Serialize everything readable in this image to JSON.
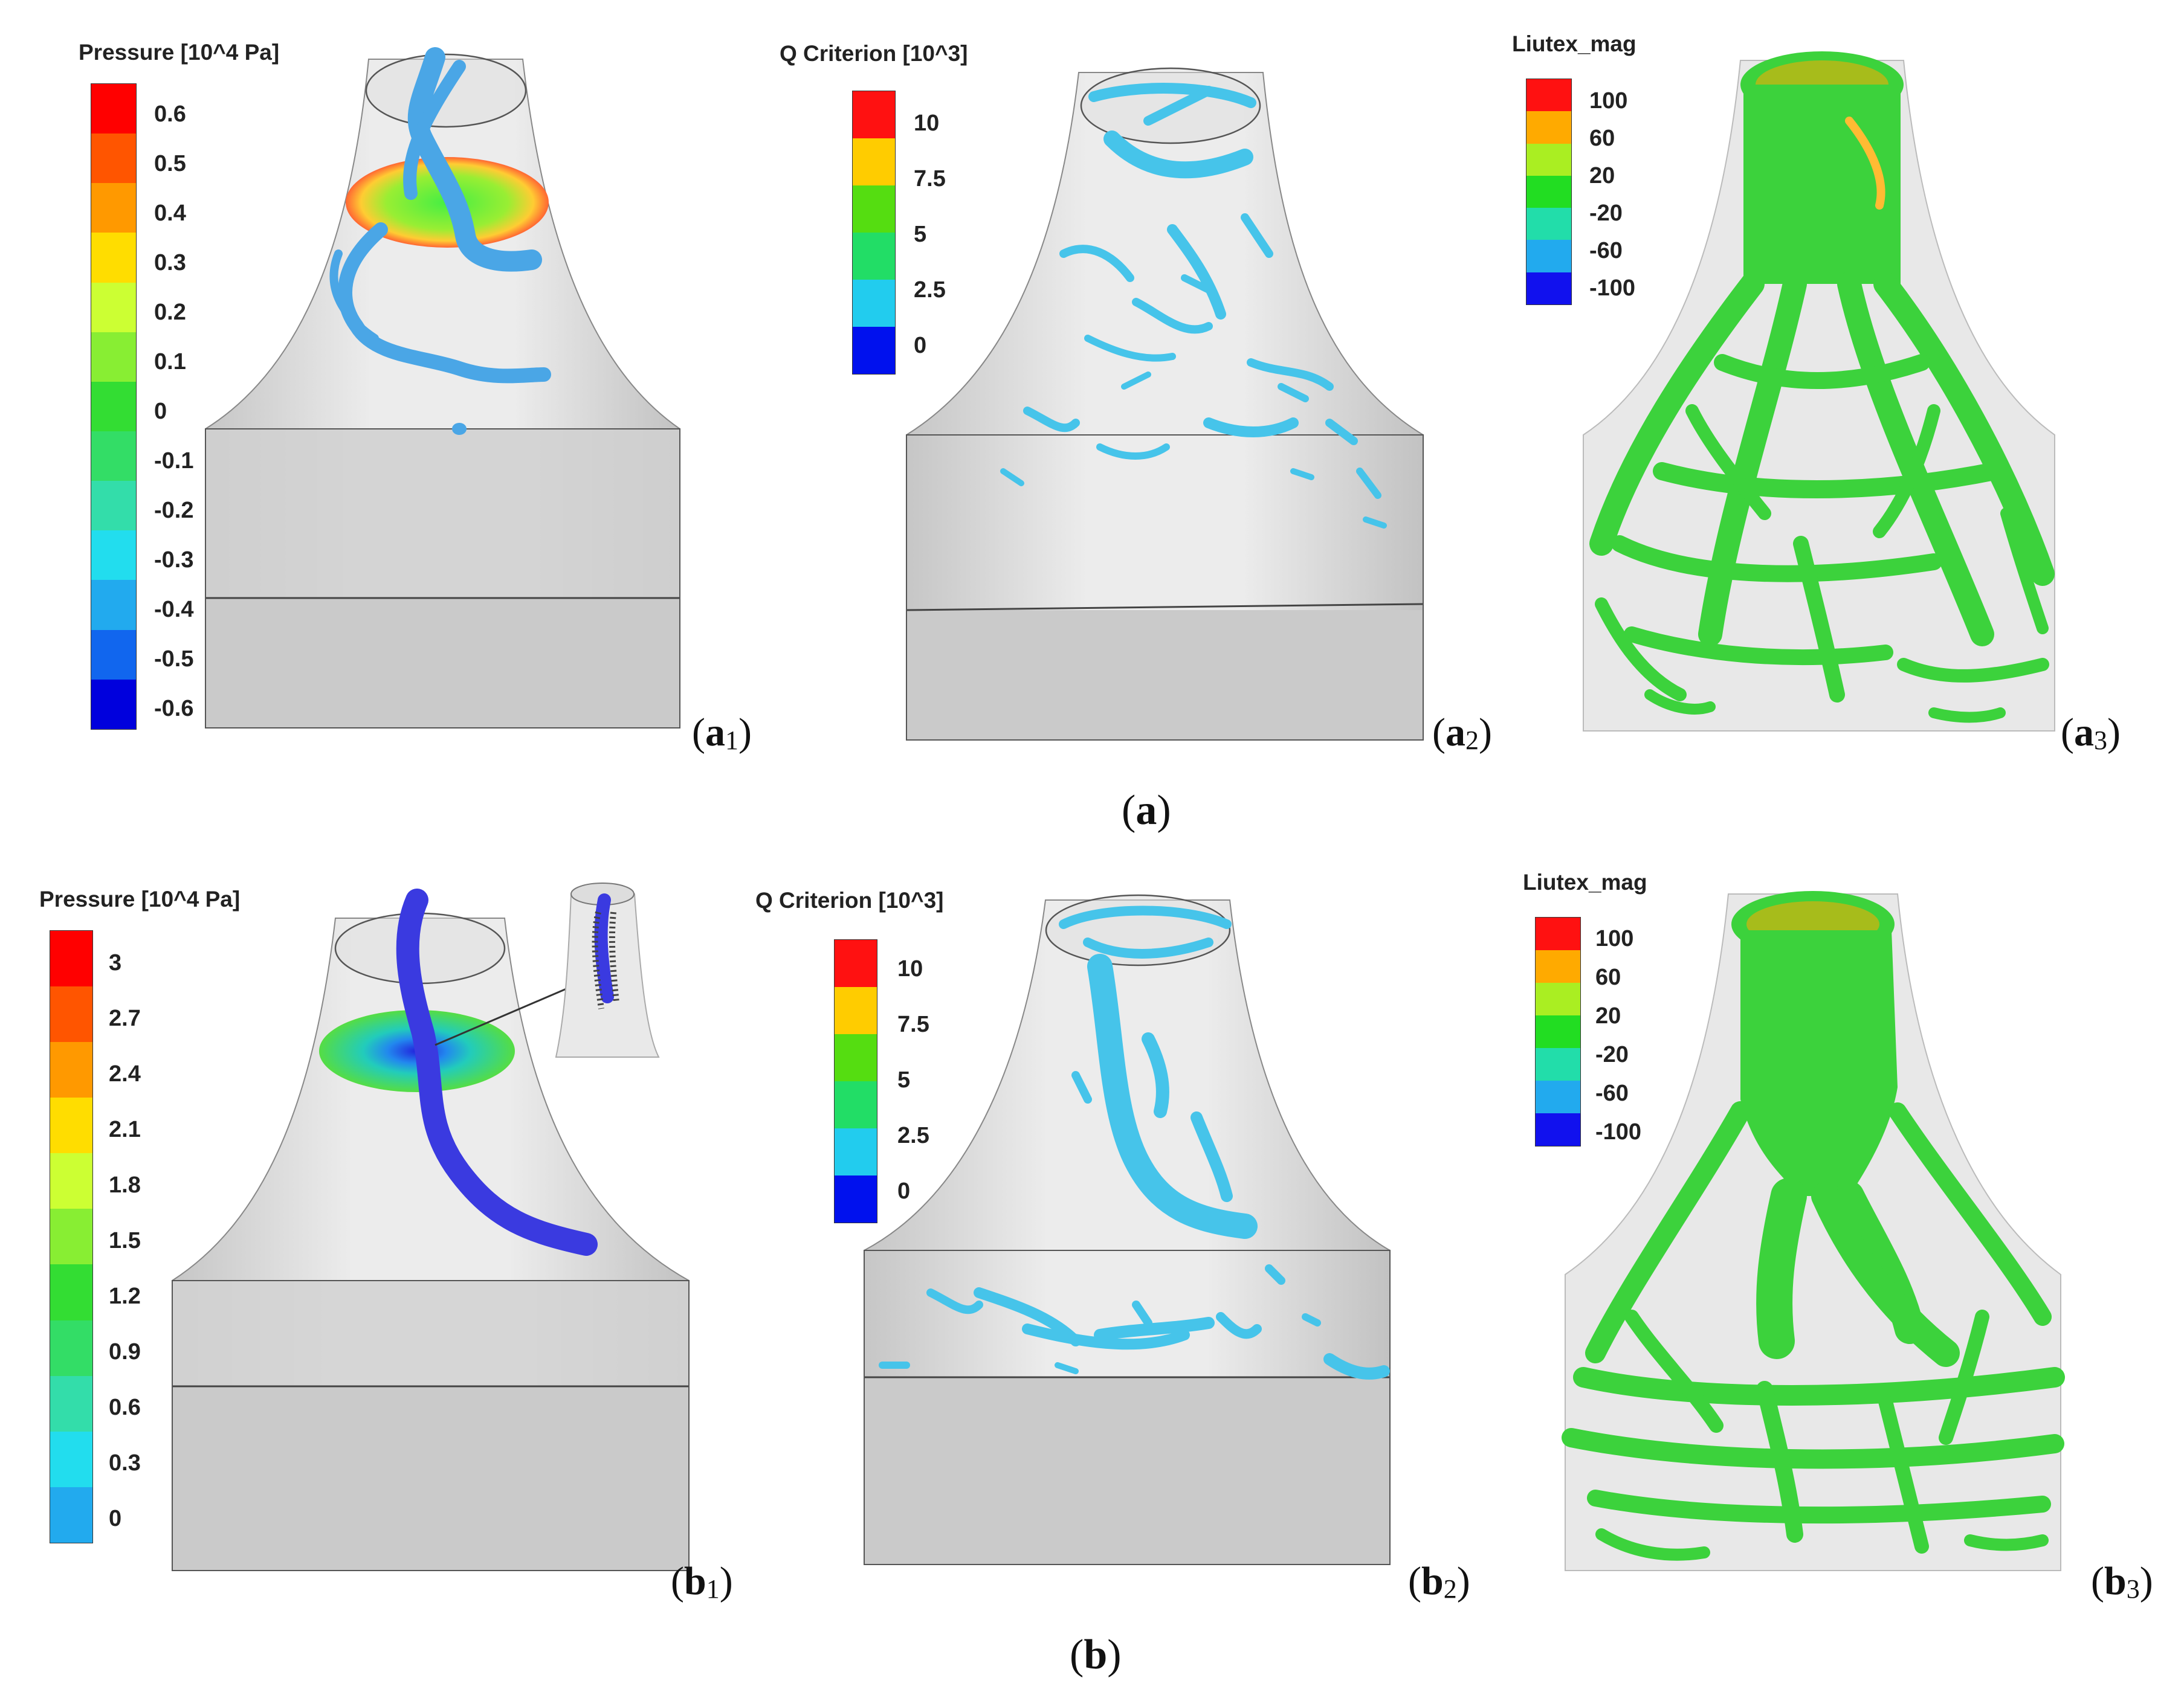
{
  "colors": {
    "pressure": [
      "#ff0000",
      "#ff5500",
      "#ff9900",
      "#ffdd00",
      "#ccff33",
      "#88ee33",
      "#33dd33",
      "#33dd66",
      "#33ddaa",
      "#22ddee",
      "#22aaee",
      "#1166ee",
      "#0000dd"
    ],
    "qcrit": [
      "#ff1111",
      "#ffcc00",
      "#55dd11",
      "#22dd66",
      "#22ccee",
      "#0011ee"
    ],
    "liutex": [
      "#ff1111",
      "#ffaa00",
      "#aaee22",
      "#22dd22",
      "#22ddaa",
      "#22aaee",
      "#1111ee"
    ],
    "iso_cyan": "#46c4ea",
    "iso_green": "#3cd23c",
    "iso_blue": "#3a3ae0"
  },
  "panels": {
    "a1": {
      "legend_title": "Pressure [10^4 Pa]",
      "ticks": [
        "0.6",
        "0.5",
        "0.4",
        "0.3",
        "0.2",
        "0.1",
        "0",
        "-0.1",
        "-0.2",
        "-0.3",
        "-0.4",
        "-0.5",
        "-0.6"
      ],
      "label_main": "a",
      "label_sub": "1"
    },
    "a2": {
      "legend_title": "Q Criterion [10^3]",
      "ticks": [
        "10",
        "7.5",
        "5",
        "2.5",
        "0"
      ],
      "label_main": "a",
      "label_sub": "2"
    },
    "a3": {
      "legend_title": "Liutex_mag",
      "ticks": [
        "100",
        "60",
        "20",
        "-20",
        "-60",
        "-100"
      ],
      "label_main": "a",
      "label_sub": "3"
    },
    "b1": {
      "legend_title": "Pressure [10^4 Pa]",
      "ticks": [
        "3",
        "2.7",
        "2.4",
        "2.1",
        "1.8",
        "1.5",
        "1.2",
        "0.9",
        "0.6",
        "0.3",
        "0"
      ],
      "label_main": "b",
      "label_sub": "1"
    },
    "b2": {
      "legend_title": "Q Criterion [10^3]",
      "ticks": [
        "10",
        "7.5",
        "5",
        "2.5",
        "0"
      ],
      "label_main": "b",
      "label_sub": "2"
    },
    "b3": {
      "legend_title": "Liutex_mag",
      "ticks": [
        "100",
        "60",
        "20",
        "-20",
        "-60",
        "-100"
      ],
      "label_main": "b",
      "label_sub": "3"
    }
  },
  "groups": {
    "a": "a",
    "b": "b"
  }
}
